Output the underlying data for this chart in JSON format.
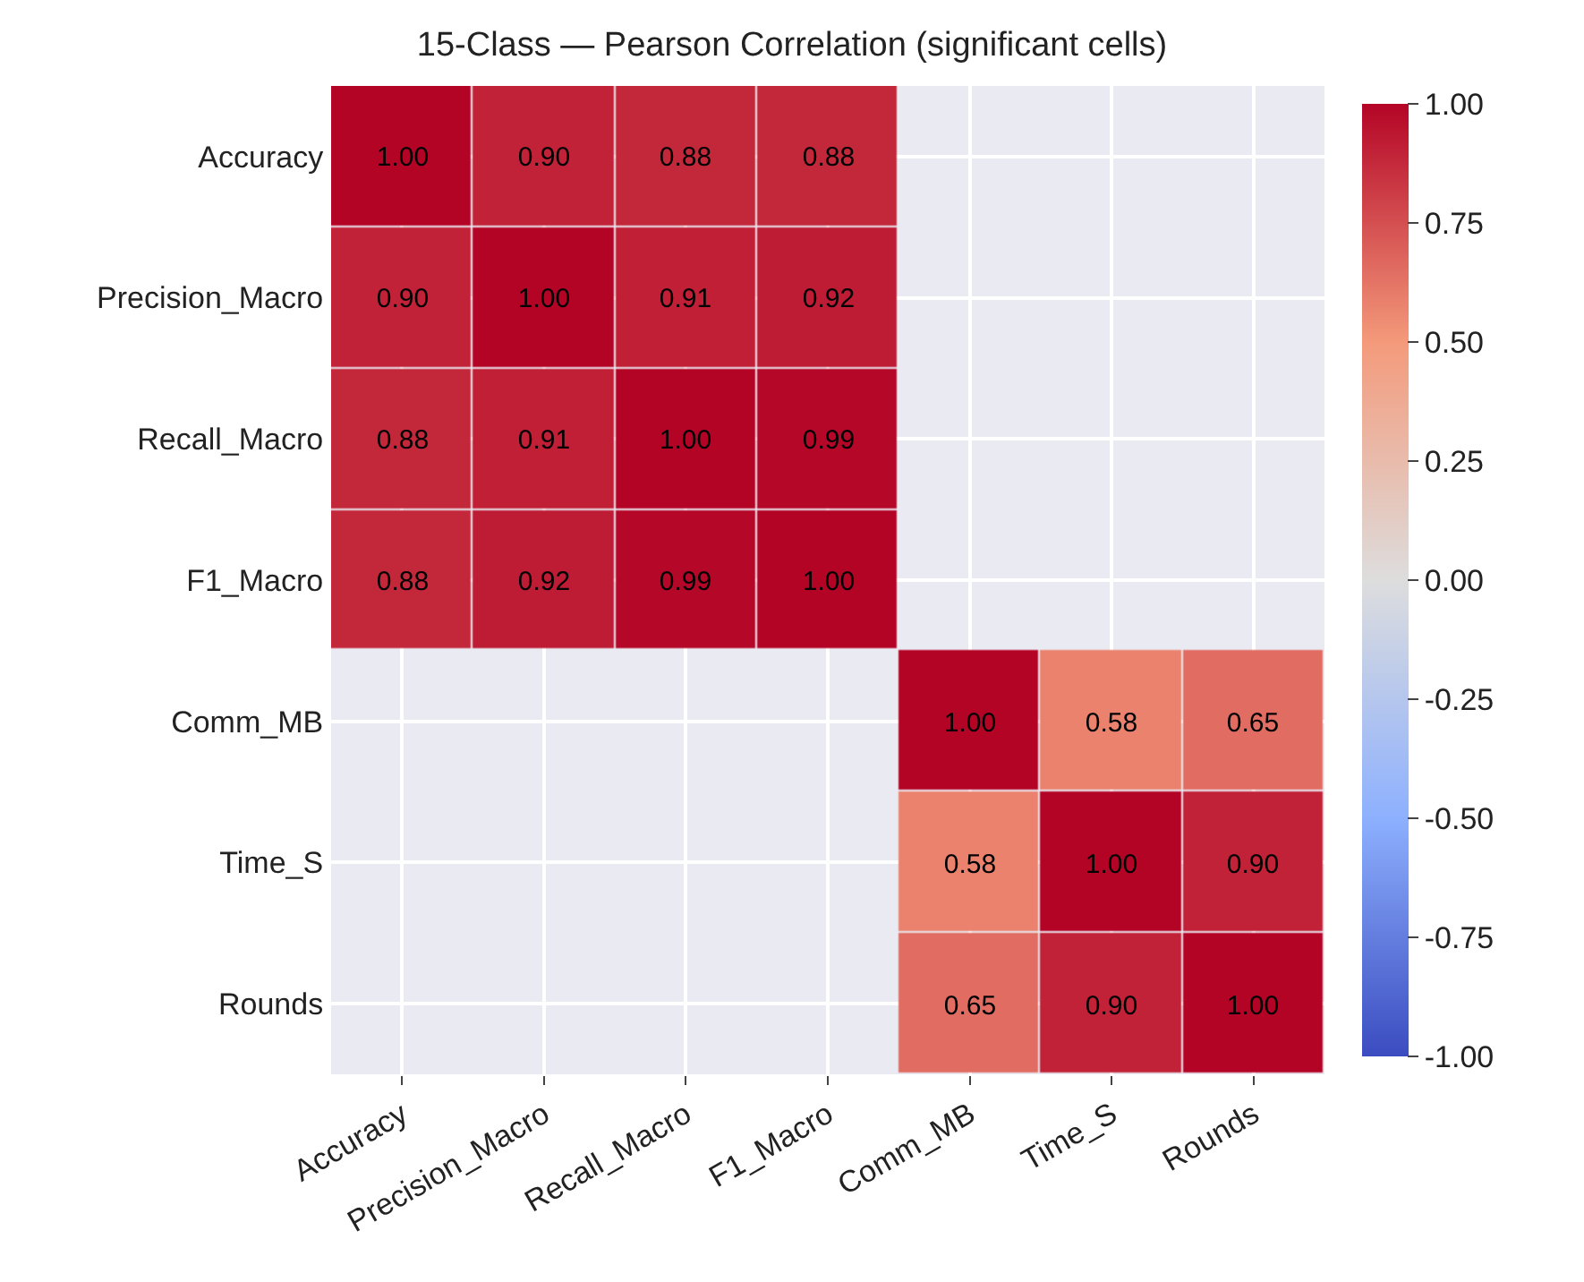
{
  "chart_data": {
    "type": "heatmap",
    "title": "15-Class — Pearson Correlation (significant cells)",
    "categories": [
      "Accuracy",
      "Precision_Macro",
      "Recall_Macro",
      "F1_Macro",
      "Comm_MB",
      "Time_S",
      "Rounds"
    ],
    "y_categories": [
      "Accuracy",
      "Precision_Macro",
      "Recall_Macro",
      "F1_Macro",
      "Comm_MB",
      "Time_S",
      "Rounds"
    ],
    "cells": [
      [
        1.0,
        0.9,
        0.88,
        0.88,
        null,
        null,
        null
      ],
      [
        0.9,
        1.0,
        0.91,
        0.92,
        null,
        null,
        null
      ],
      [
        0.88,
        0.91,
        1.0,
        0.99,
        null,
        null,
        null
      ],
      [
        0.88,
        0.92,
        0.99,
        1.0,
        null,
        null,
        null
      ],
      [
        null,
        null,
        null,
        null,
        1.0,
        0.58,
        0.65
      ],
      [
        null,
        null,
        null,
        null,
        0.58,
        1.0,
        0.9
      ],
      [
        null,
        null,
        null,
        null,
        0.65,
        0.9,
        1.0
      ]
    ],
    "cell_labels": [
      [
        "1.00",
        "0.90",
        "0.88",
        "0.88",
        null,
        null,
        null
      ],
      [
        "0.90",
        "1.00",
        "0.91",
        "0.92",
        null,
        null,
        null
      ],
      [
        "0.88",
        "0.91",
        "1.00",
        "0.99",
        null,
        null,
        null
      ],
      [
        "0.88",
        "0.92",
        "0.99",
        "1.00",
        null,
        null,
        null
      ],
      [
        null,
        null,
        null,
        null,
        "1.00",
        "0.58",
        "0.65"
      ],
      [
        null,
        null,
        null,
        null,
        "0.58",
        "1.00",
        "0.90"
      ],
      [
        null,
        null,
        null,
        null,
        "0.65",
        "0.90",
        "1.00"
      ]
    ],
    "clim": [
      -1,
      1
    ],
    "cticks": [
      {
        "value": -1,
        "label": "-1.00"
      },
      {
        "value": -0.75,
        "label": "-0.75"
      },
      {
        "value": -0.5,
        "label": "-0.50"
      },
      {
        "value": -0.25,
        "label": "-0.25"
      },
      {
        "value": 0,
        "label": "0.00"
      },
      {
        "value": 0.25,
        "label": "0.25"
      },
      {
        "value": 0.5,
        "label": "0.50"
      },
      {
        "value": 0.75,
        "label": "0.75"
      },
      {
        "value": 1,
        "label": "1.00"
      }
    ],
    "grid": true
  }
}
